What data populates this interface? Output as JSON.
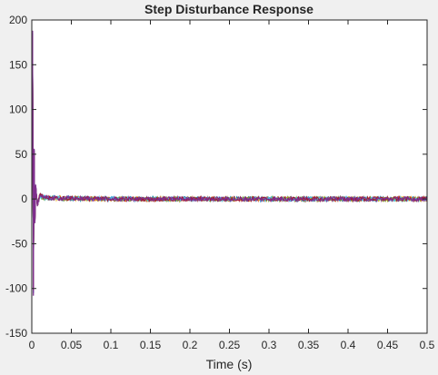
{
  "chart_data": {
    "type": "line",
    "title": "Step Disturbance Response",
    "xlabel": "Time (s)",
    "ylabel": "",
    "xlim": [
      0,
      0.5
    ],
    "ylim": [
      -150,
      200
    ],
    "x_ticks": [
      "0",
      "0.05",
      "0.1",
      "0.15",
      "0.2",
      "0.25",
      "0.3",
      "0.35",
      "0.4",
      "0.45",
      "0.5"
    ],
    "y_ticks": [
      "200",
      "150",
      "100",
      "50",
      "0",
      "-50",
      "-100",
      "-150"
    ],
    "grid": false,
    "legend": "none",
    "series_colors": [
      "#0072bd",
      "#d95319",
      "#edb120",
      "#77ac30",
      "#4dbeee",
      "#a2142f",
      "#7e2f8e"
    ],
    "series": [
      {
        "x": [
          0,
          0.001,
          0.002,
          0.003,
          0.004,
          0.005,
          0.007,
          0.01,
          0.02,
          0.1,
          0.2,
          0.3,
          0.4,
          0.5
        ],
        "y": [
          0,
          185,
          -105,
          55,
          -25,
          15,
          -8,
          4,
          1,
          0,
          0,
          0,
          0,
          0
        ],
        "noise": 2.5
      },
      {
        "x": [
          0,
          0.001,
          0.002,
          0.003,
          0.004,
          0.005,
          0.007,
          0.01,
          0.02,
          0.1,
          0.2,
          0.3,
          0.4,
          0.5
        ],
        "y": [
          0,
          175,
          -95,
          48,
          -22,
          12,
          -6,
          3,
          1,
          0,
          0,
          0,
          0,
          0
        ],
        "noise": 2.5
      },
      {
        "x": [
          0,
          0.001,
          0.002,
          0.003,
          0.004,
          0.005,
          0.007,
          0.01,
          0.02,
          0.1,
          0.2,
          0.3,
          0.4,
          0.5
        ],
        "y": [
          0,
          180,
          -100,
          50,
          -24,
          14,
          -7,
          3,
          1,
          0,
          0,
          0,
          0,
          0
        ],
        "noise": 2.5
      },
      {
        "x": [
          0,
          0.001,
          0.002,
          0.003,
          0.004,
          0.005,
          0.007,
          0.01,
          0.02,
          0.1,
          0.2,
          0.3,
          0.4,
          0.5
        ],
        "y": [
          0,
          170,
          -90,
          45,
          -20,
          10,
          -5,
          2,
          1,
          0,
          0,
          0,
          0,
          0
        ],
        "noise": 2.5
      },
      {
        "x": [
          0,
          0.001,
          0.002,
          0.003,
          0.004,
          0.005,
          0.007,
          0.01,
          0.02,
          0.1,
          0.2,
          0.3,
          0.4,
          0.5
        ],
        "y": [
          0,
          178,
          -98,
          52,
          -23,
          13,
          -6,
          3,
          1,
          0,
          0,
          0,
          0,
          0
        ],
        "noise": 2.5
      },
      {
        "x": [
          0,
          0.001,
          0.002,
          0.003,
          0.004,
          0.005,
          0.007,
          0.01,
          0.02,
          0.1,
          0.2,
          0.3,
          0.4,
          0.5
        ],
        "y": [
          0,
          182,
          -102,
          54,
          -26,
          14,
          -7,
          4,
          1,
          0,
          0,
          0,
          0,
          0
        ],
        "noise": 2.5
      },
      {
        "x": [
          0,
          0.001,
          0.002,
          0.003,
          0.004,
          0.005,
          0.007,
          0.01,
          0.02,
          0.1,
          0.2,
          0.3,
          0.4,
          0.5
        ],
        "y": [
          0,
          188,
          -108,
          56,
          -27,
          16,
          -8,
          4,
          1,
          0,
          0,
          0,
          0,
          0
        ],
        "noise": 2.5
      }
    ]
  }
}
